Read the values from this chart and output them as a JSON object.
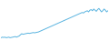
{
  "values": [
    1.0,
    1.1,
    1.05,
    1.1,
    1.0,
    1.05,
    1.1,
    1.0,
    1.05,
    1.1,
    1.15,
    1.2,
    1.1,
    1.2,
    1.3,
    1.5,
    1.7,
    1.6,
    1.65,
    1.7,
    1.75,
    1.8,
    1.75,
    1.8,
    1.85,
    1.9,
    1.85,
    1.9,
    1.95,
    2.0,
    2.1,
    2.2,
    2.3,
    2.4,
    2.5,
    2.6,
    2.7,
    2.8,
    2.9,
    3.0,
    3.1,
    3.2,
    3.3,
    3.4,
    3.5,
    3.6,
    3.7,
    3.8,
    3.9,
    4.0,
    4.1,
    4.2,
    4.3,
    4.4,
    4.5,
    4.6,
    4.7,
    4.8,
    4.9,
    5.0,
    5.1,
    5.2,
    5.3,
    5.4,
    5.3,
    5.5,
    5.6,
    5.7,
    5.5,
    5.8,
    5.9,
    5.7,
    6.0,
    5.8,
    5.6,
    5.9,
    6.1,
    5.8,
    5.5,
    5.7,
    6.0,
    5.8,
    5.5,
    5.7
  ],
  "line_color": "#5ab4e0",
  "background_color": "#ffffff",
  "ylim_min": 0.5,
  "ylim_max": 7.5
}
